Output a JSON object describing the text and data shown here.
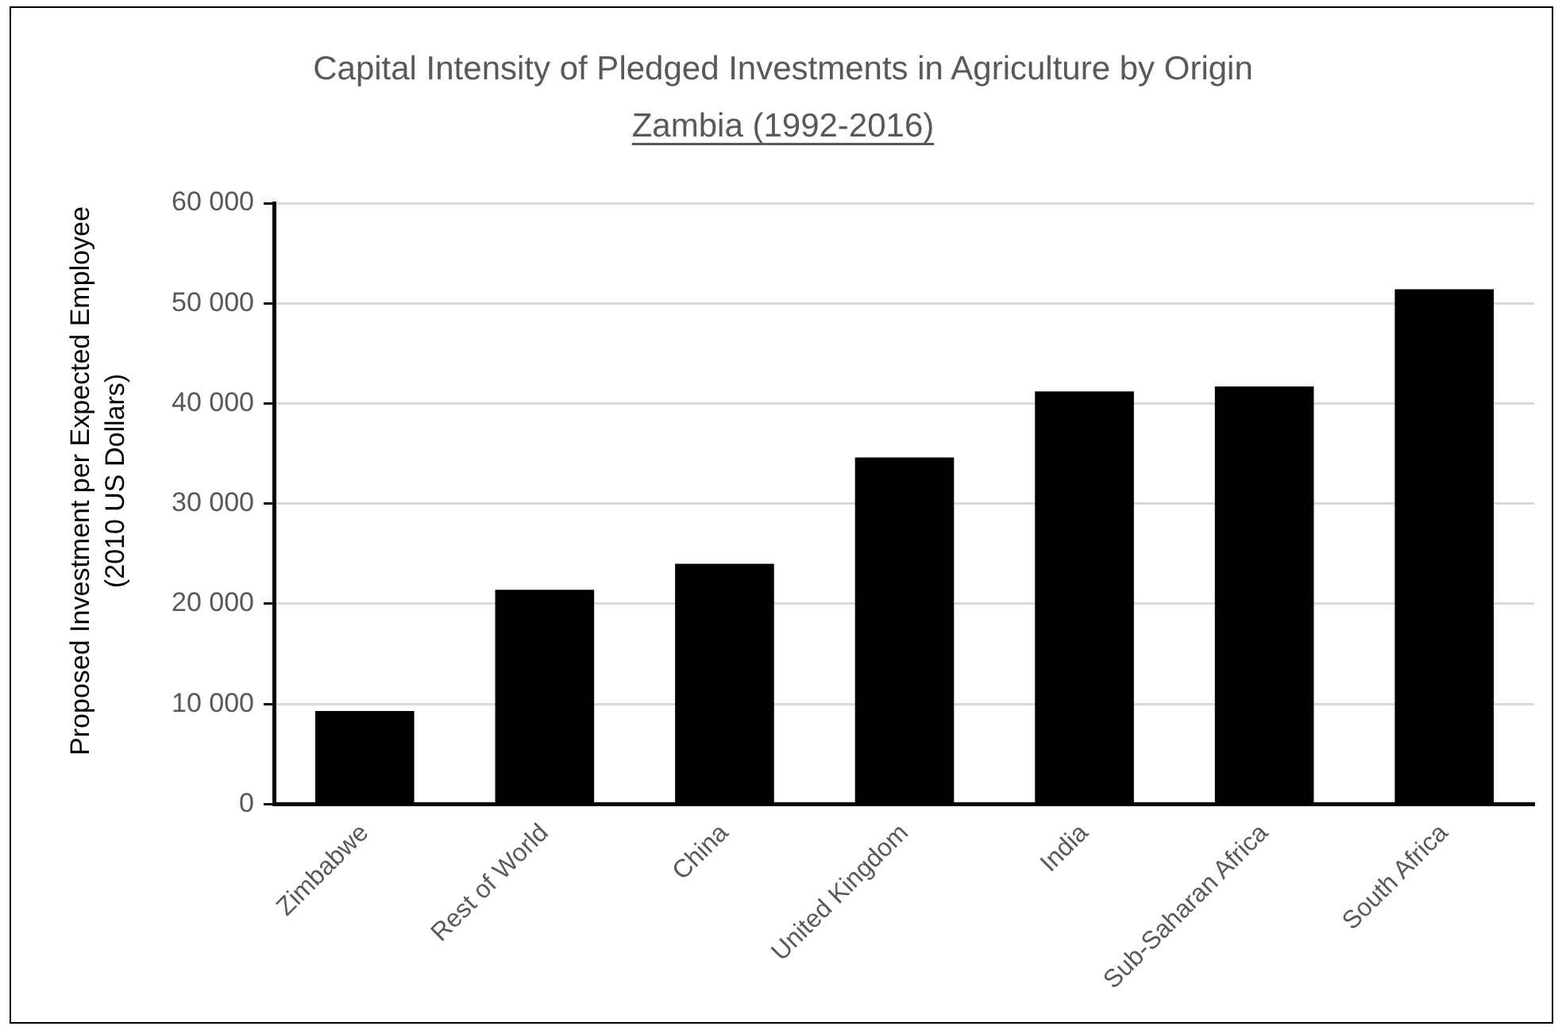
{
  "chart_data": {
    "type": "bar",
    "title": "Capital Intensity of Pledged Investments in Agriculture by Origin",
    "subtitle": "Zambia (1992-2016)",
    "ylabel": "Proposed Investment per Expected Employee\n(2010 US Dollars)",
    "categories": [
      "Zimbabwe",
      "Rest of World",
      "China",
      "United Kingdom",
      "India",
      "Sub-Saharan Africa",
      "South Africa"
    ],
    "values": [
      9300,
      21400,
      24000,
      34600,
      41200,
      41700,
      51400
    ],
    "color": "#000000",
    "ylim": [
      0,
      60000
    ],
    "yticks": [
      0,
      {
        "value": 10000,
        "label": "10 000"
      },
      {
        "value": 20000,
        "label": "20 000"
      },
      {
        "value": 30000,
        "label": "30 000"
      },
      {
        "value": 40000,
        "label": "40 000"
      },
      {
        "value": 50000,
        "label": "50 000"
      },
      {
        "value": 60000,
        "label": "60 000"
      }
    ],
    "grid": "y",
    "legend": false
  }
}
